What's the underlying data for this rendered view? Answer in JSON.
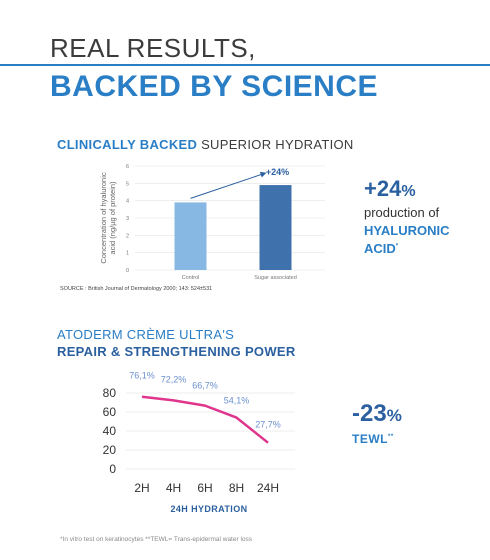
{
  "header": {
    "line1": "REAL RESULTS,",
    "line2": "BACKED BY SCIENCE",
    "rule_color": "#2a7ec5"
  },
  "hydration": {
    "title_bold": "CLINICALLY BACKED",
    "title_rest": " SUPERIOR HYDRATION",
    "source": "SOURCE : British Journal of Dermatology 2000; 143: 524±531",
    "stat_number": "+24",
    "stat_pct": "%",
    "stat_line1": "production of",
    "stat_line2": "HYALURONIC",
    "stat_line3": "ACID",
    "stat_mark": "*"
  },
  "atoderm": {
    "title_line1": "ATODERM CRÈME ULTRA'S",
    "title_line2": "REPAIR & STRENGTHENING POWER",
    "stat_number": "-23",
    "stat_pct": "%",
    "stat_label": "TEWL",
    "stat_mark": "**"
  },
  "footnote": "*In vitro test on keratinocytes **TEWL= Trans-epidermal water loss",
  "chart_data": [
    {
      "type": "bar",
      "categories": [
        "Control",
        "Sugar associated"
      ],
      "values": [
        3.9,
        4.9
      ],
      "colors": [
        "#86b8e3",
        "#3f72ad"
      ],
      "ylabel": "Concentration of hyaluronic acid (ng/µg of protein)",
      "ylim": [
        0,
        6
      ],
      "yticks": [
        0,
        1,
        2,
        3,
        4,
        5,
        6
      ],
      "grid": true,
      "annotation": "+24%"
    },
    {
      "type": "line",
      "x": [
        "2H",
        "4H",
        "6H",
        "8H",
        "24H"
      ],
      "values": [
        76.1,
        72.2,
        66.7,
        54.1,
        27.7
      ],
      "point_labels": [
        "76,1%",
        "72,2%",
        "66,7%",
        "54,1%",
        "27,7%"
      ],
      "xlabel": "24H HYDRATION",
      "ylim": [
        0,
        80
      ],
      "yticks": [
        0,
        20,
        40,
        60,
        80
      ],
      "grid": true,
      "line_color": "#e0358c",
      "label_color": "#6b8fcf"
    }
  ]
}
